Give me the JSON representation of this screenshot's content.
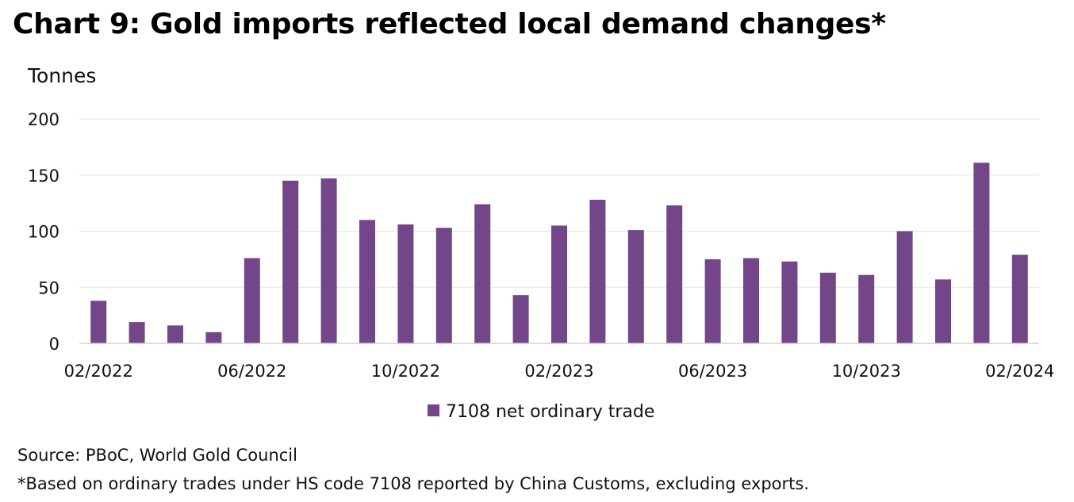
{
  "title": "Chart 9: Gold imports reflected local demand changes*",
  "source": "Source: PBoC, World Gold Council",
  "footnote": "*Based on ordinary trades under HS code 7108 reported by China Customs, excluding exports.",
  "chart_data": {
    "type": "bar",
    "ylabel": "Tonnes",
    "xlabel": "",
    "ylim": [
      0,
      200
    ],
    "yticks": [
      0,
      50,
      100,
      150,
      200
    ],
    "grid": true,
    "legend_position": "bottom-center",
    "color": "#734589",
    "categories": [
      "02/2022",
      "03/2022",
      "04/2022",
      "05/2022",
      "06/2022",
      "07/2022",
      "08/2022",
      "09/2022",
      "10/2022",
      "11/2022",
      "12/2022",
      "01/2023",
      "02/2023",
      "03/2023",
      "04/2023",
      "05/2023",
      "06/2023",
      "07/2023",
      "08/2023",
      "09/2023",
      "10/2023",
      "11/2023",
      "12/2023",
      "01/2024",
      "02/2024"
    ],
    "xtick_labels": [
      "02/2022",
      "06/2022",
      "10/2022",
      "02/2023",
      "06/2023",
      "10/2023",
      "02/2024"
    ],
    "series": [
      {
        "name": "7108 net ordinary trade",
        "values": [
          38,
          19,
          16,
          10,
          76,
          145,
          147,
          110,
          106,
          103,
          124,
          43,
          105,
          128,
          101,
          123,
          75,
          76,
          73,
          63,
          61,
          100,
          57,
          161,
          79
        ]
      }
    ]
  }
}
